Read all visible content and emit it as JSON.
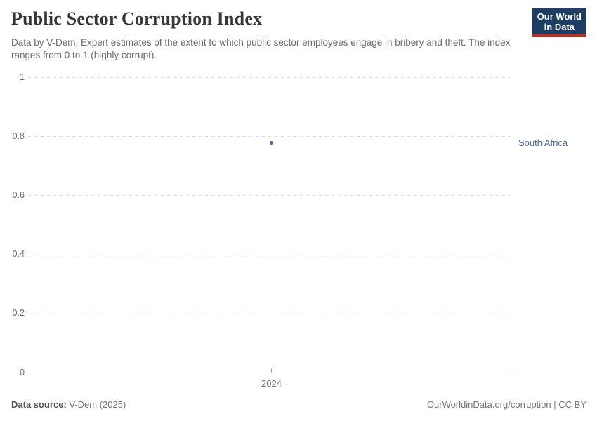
{
  "header": {
    "title": "Public Sector Corruption Index",
    "subtitle": "Data by V-Dem. Expert estimates of the extent to which public sector employees engage in bribery and theft. The index ranges from 0 to 1 (highly corrupt).",
    "logo": {
      "line1": "Our World",
      "line2": "in Data",
      "bg_color": "#1d3d63",
      "bar_color": "#cc2a1d"
    }
  },
  "chart_data": {
    "type": "scatter",
    "title": "Public Sector Corruption Index",
    "x": [
      2024
    ],
    "xtick_labels": [
      "2024"
    ],
    "series": [
      {
        "name": "South Africa",
        "values": [
          0.78
        ],
        "color": "#4c669c"
      }
    ],
    "xlabel": "",
    "ylabel": "",
    "ylim": [
      0,
      1
    ],
    "yticks": [
      0,
      0.2,
      0.4,
      0.6,
      0.8,
      1
    ],
    "ytick_labels": [
      "0",
      "0.2",
      "0.4",
      "0.6",
      "0.8",
      "1"
    ],
    "grid": "horizontal dashed",
    "legend_position": "entity label right of plot"
  },
  "footer": {
    "source_label": "Data source:",
    "source_value": " V-Dem (2025)",
    "attribution": "OurWorldinData.org/corruption | CC BY"
  }
}
